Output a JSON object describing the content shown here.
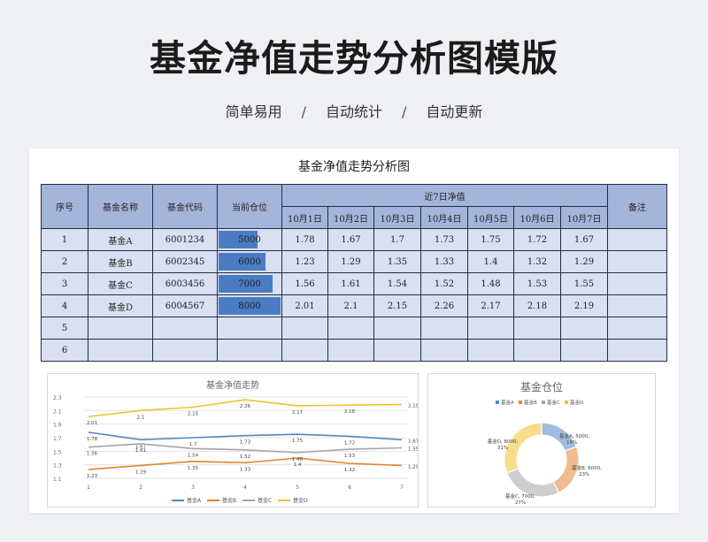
{
  "hero": {
    "title": "基金净值走势分析图模版",
    "tags": [
      "简单易用",
      "自动统计",
      "自动更新"
    ],
    "separator": "/"
  },
  "sheet": {
    "title": "基金净值走势分析图",
    "headers": {
      "index": "序号",
      "name": "基金名称",
      "code": "基金代码",
      "position": "当前仓位",
      "group": "近7日净值",
      "remark": "备注",
      "days": [
        "10月1日",
        "10月2日",
        "10月3日",
        "10月4日",
        "10月5日",
        "10月6日",
        "10月7日"
      ]
    },
    "rows": [
      {
        "index": "1",
        "name": "基金A",
        "code": "6001234",
        "position": "5000",
        "nav": [
          "1.78",
          "1.67",
          "1.7",
          "1.73",
          "1.75",
          "1.72",
          "1.67"
        ]
      },
      {
        "index": "2",
        "name": "基金B",
        "code": "6002345",
        "position": "6000",
        "nav": [
          "1.23",
          "1.29",
          "1.35",
          "1.33",
          "1.4",
          "1.32",
          "1.29"
        ]
      },
      {
        "index": "3",
        "name": "基金C",
        "code": "6003456",
        "position": "7000",
        "nav": [
          "1.56",
          "1.61",
          "1.54",
          "1.52",
          "1.48",
          "1.53",
          "1.55"
        ]
      },
      {
        "index": "4",
        "name": "基金D",
        "code": "6004567",
        "position": "8000",
        "nav": [
          "2.01",
          "2.1",
          "2.15",
          "2.26",
          "2.17",
          "2.18",
          "2.19"
        ]
      },
      {
        "index": "5",
        "name": "",
        "code": "",
        "position": "",
        "nav": [
          "",
          "",
          "",
          "",
          "",
          "",
          ""
        ]
      },
      {
        "index": "6",
        "name": "",
        "code": "",
        "position": "",
        "nav": [
          "",
          "",
          "",
          "",
          "",
          "",
          ""
        ]
      }
    ],
    "position_bar_color": "#4a7cc4",
    "position_bar_max": 8000
  },
  "chart_data": [
    {
      "type": "line",
      "title": "基金净值走势",
      "x": [
        1,
        2,
        3,
        4,
        5,
        6,
        7
      ],
      "ylim": [
        1.1,
        2.3
      ],
      "yticks": [
        1.1,
        1.3,
        1.5,
        1.7,
        1.9,
        2.1,
        2.3
      ],
      "grid": true,
      "legend": "bottom",
      "series": [
        {
          "name": "基金A",
          "color": "#4e86c6",
          "values": [
            1.78,
            1.67,
            1.7,
            1.73,
            1.75,
            1.72,
            1.67
          ]
        },
        {
          "name": "基金B",
          "color": "#e4832f",
          "values": [
            1.23,
            1.29,
            1.35,
            1.33,
            1.4,
            1.32,
            1.29
          ]
        },
        {
          "name": "基金C",
          "color": "#a5a5a5",
          "values": [
            1.56,
            1.61,
            1.54,
            1.52,
            1.48,
            1.53,
            1.55
          ]
        },
        {
          "name": "基金D",
          "color": "#f2c12e",
          "values": [
            2.01,
            2.1,
            2.15,
            2.26,
            2.17,
            2.18,
            2.19
          ]
        }
      ]
    },
    {
      "type": "pie",
      "title": "基金仓位",
      "legend": "top",
      "slices": [
        {
          "name": "基金A",
          "value": 5000,
          "percent": "19%",
          "label": "基金A, 5000, 19%",
          "color": "#4e86c6"
        },
        {
          "name": "基金B",
          "value": 6000,
          "percent": "23%",
          "label": "基金B, 6000, 23%",
          "color": "#e4832f"
        },
        {
          "name": "基金C",
          "value": 7000,
          "percent": "27%",
          "label": "基金C, 7000, 27%",
          "color": "#a5a5a5"
        },
        {
          "name": "基金D",
          "value": 8000,
          "percent": "31%",
          "label": "基金D, 8000, 31%",
          "color": "#f2c12e"
        }
      ]
    }
  ]
}
